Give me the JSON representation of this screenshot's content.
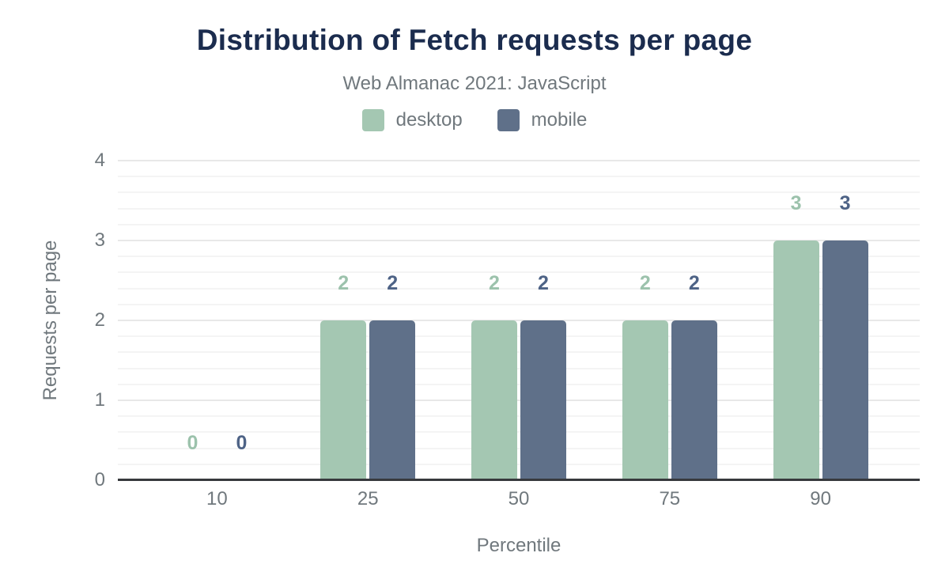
{
  "chart_data": {
    "type": "bar",
    "title": "Distribution of Fetch requests per page",
    "subtitle": "Web Almanac 2021: JavaScript",
    "categories": [
      "10",
      "25",
      "50",
      "75",
      "90"
    ],
    "series": [
      {
        "name": "desktop",
        "values": [
          0,
          2,
          2,
          2,
          3
        ],
        "color": "#a4c7b2",
        "label_color": "#9cc2ac"
      },
      {
        "name": "mobile",
        "values": [
          0,
          2,
          2,
          2,
          3
        ],
        "color": "#5f7089",
        "label_color": "#4e6386"
      }
    ],
    "xlabel": "Percentile",
    "ylabel": "Requests per page",
    "ylim": [
      0,
      4
    ],
    "y_major_step": 1,
    "y_minor_step": 0.2,
    "yticks": [
      "0",
      "1",
      "2",
      "3",
      "4"
    ],
    "legend_position": "top",
    "grid": true
  },
  "colors": {
    "background": "#ffffff",
    "title": "#1b2c4e",
    "muted": "#70787d",
    "axis_line": "#37393d",
    "grid_major": "#e8e8e8",
    "grid_minor": "#f4f4f4"
  }
}
